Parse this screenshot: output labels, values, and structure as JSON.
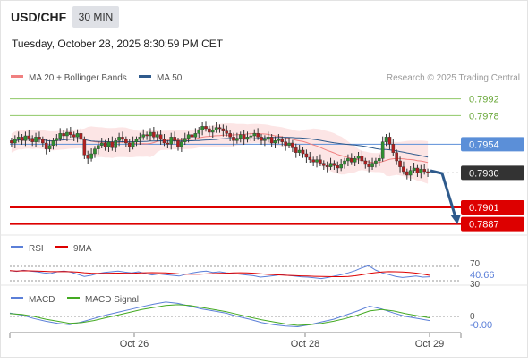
{
  "header": {
    "symbol": "USD/CHF",
    "timeframe": "30 MIN",
    "datetime": "Tuesday, October 28, 2025 8:30:59 PM CET"
  },
  "legend": {
    "ma20": "MA 20 + Bollinger Bands",
    "ma50": "MA 50",
    "ma20_color": "#f08080",
    "ma50_color": "#2e5a8c",
    "credit": "Research © 2025 Trading Central"
  },
  "rsi_legend": {
    "rsi": "RSI",
    "ma": "9MA",
    "rsi_color": "#5b7fd8",
    "ma_color": "#dd0000"
  },
  "macd_legend": {
    "macd": "MACD",
    "signal": "MACD Signal",
    "macd_color": "#5b7fd8",
    "signal_color": "#44aa22"
  },
  "chart_data": {
    "type": "candlestick",
    "y_range": [
      0.788,
      0.8
    ],
    "x_ticks": [
      "Oct 26",
      "Oct 28",
      "Oct 29"
    ],
    "levels": [
      {
        "label": "0.7992",
        "value": 0.7992,
        "kind": "resistance",
        "color": "#8fc866"
      },
      {
        "label": "0.7978",
        "value": 0.7978,
        "kind": "resistance",
        "color": "#8fc866"
      },
      {
        "label": "0.7954",
        "value": 0.7954,
        "kind": "pivot",
        "color": "#5b8fd8"
      },
      {
        "label": "0.7930",
        "value": 0.793,
        "kind": "last",
        "color": "#333333"
      },
      {
        "label": "0.7901",
        "value": 0.7901,
        "kind": "support",
        "color": "#dd0000"
      },
      {
        "label": "0.7887",
        "value": 0.7887,
        "kind": "support",
        "color": "#dd0000"
      }
    ],
    "closes": [
      0.7955,
      0.7958,
      0.796,
      0.7957,
      0.7961,
      0.7959,
      0.7956,
      0.796,
      0.7958,
      0.7955,
      0.795,
      0.7953,
      0.7957,
      0.7959,
      0.7963,
      0.7961,
      0.7964,
      0.7962,
      0.796,
      0.7963,
      0.7958,
      0.7945,
      0.7942,
      0.7946,
      0.795,
      0.7953,
      0.7955,
      0.7952,
      0.7956,
      0.7951,
      0.7957,
      0.796,
      0.7958,
      0.7955,
      0.7952,
      0.7956,
      0.7958,
      0.796,
      0.7962,
      0.7961,
      0.7964,
      0.796,
      0.7962,
      0.7958,
      0.7955,
      0.7954,
      0.796,
      0.7957,
      0.7952,
      0.7956,
      0.7959,
      0.7962,
      0.796,
      0.7963,
      0.7966,
      0.7969,
      0.7967,
      0.7964,
      0.7966,
      0.7968,
      0.7967,
      0.7965,
      0.7963,
      0.796,
      0.7957,
      0.7959,
      0.7962,
      0.7958,
      0.796,
      0.7961,
      0.7963,
      0.796,
      0.7957,
      0.7958,
      0.796,
      0.7955,
      0.7957,
      0.7958,
      0.7956,
      0.7953,
      0.7955,
      0.7951,
      0.7947,
      0.7949,
      0.7946,
      0.7943,
      0.7941,
      0.7939,
      0.7941,
      0.7938,
      0.7936,
      0.7935,
      0.7938,
      0.7936,
      0.7934,
      0.7937,
      0.794,
      0.7942,
      0.7939,
      0.7942,
      0.7944,
      0.794,
      0.7937,
      0.7935,
      0.7938,
      0.794,
      0.7942,
      0.7956,
      0.796,
      0.7954,
      0.7947,
      0.794,
      0.7935,
      0.7931,
      0.7928,
      0.7932,
      0.7934,
      0.793,
      0.7933,
      0.7931,
      0.793
    ],
    "rsi": {
      "value": "40.66",
      "level": "70",
      "lower": "30",
      "series": [
        58,
        56,
        59,
        57,
        55,
        52,
        50,
        55,
        57,
        54,
        48,
        42,
        45,
        50,
        53,
        55,
        57,
        54,
        52,
        55,
        50,
        46,
        49,
        47,
        45,
        43,
        48,
        52,
        55,
        57,
        53,
        55,
        52,
        50,
        48,
        46,
        44,
        40,
        42,
        44,
        47,
        45,
        43,
        41,
        40,
        38,
        36,
        39,
        43,
        47,
        52,
        58,
        66,
        72,
        60,
        52,
        47,
        42,
        39,
        41,
        43,
        40,
        41
      ]
    },
    "macd": {
      "value": "-0.00",
      "level": "0",
      "series": [
        5e-05,
        2e-05,
        -3e-05,
        -7e-05,
        -0.0001,
        -0.00012,
        -8e-05,
        -3e-05,
        2e-05,
        6e-05,
        0.0001,
        0.00014,
        0.00018,
        0.00021,
        0.00019,
        0.00015,
        0.00011,
        8e-05,
        5e-05,
        0.0,
        -4e-05,
        -9e-05,
        -0.00012,
        -0.00014,
        -0.00015,
        -0.00012,
        -8e-05,
        -4e-05,
        2e-05,
        8e-05,
        0.00015,
        0.00011,
        5e-05,
        0.0,
        -3e-05,
        -6e-05
      ],
      "signal": [
        4e-05,
        3e-05,
        0.0,
        -4e-05,
        -7e-05,
        -0.0001,
        -9e-05,
        -6e-05,
        -2e-05,
        2e-05,
        6e-05,
        0.0001,
        0.00013,
        0.00016,
        0.00017,
        0.00016,
        0.00013,
        0.0001,
        7e-05,
        3e-05,
        -1e-05,
        -5e-05,
        -8e-05,
        -0.00011,
        -0.00013,
        -0.00012,
        -0.0001,
        -7e-05,
        -3e-05,
        2e-05,
        8e-05,
        0.0001,
        8e-05,
        4e-05,
        1e-05,
        -2e-05
      ]
    }
  }
}
